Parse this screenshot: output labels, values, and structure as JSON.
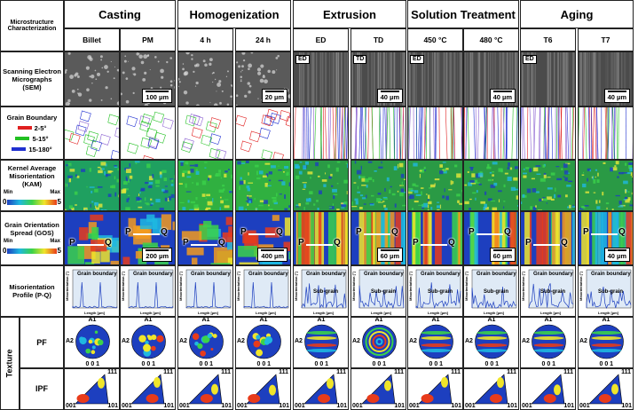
{
  "header": {
    "corner": "Microstructure Characterization",
    "stages": [
      "Casting",
      "Homogenization",
      "Extrusion",
      "Solution Treatment",
      "Aging"
    ],
    "conditions": [
      "Billet",
      "PM",
      "4 h",
      "24 h",
      "ED",
      "TD",
      "450 °C",
      "480 °C",
      "T6",
      "T7"
    ]
  },
  "rows": {
    "sem": "Scanning Electron Micrographs (SEM)",
    "gb": "Grain Boundary",
    "kam": "Kernel Average Misorientation (KAM)",
    "gos": "Grain Orientation Spread (GOS)",
    "mp": "Misorientation Profile (P-Q)",
    "texture": "Texture",
    "pf": "PF",
    "ipf": "IPF"
  },
  "gb_legend": [
    {
      "label": "2-5°",
      "color": "#e02020"
    },
    {
      "label": "5-15°",
      "color": "#22c022"
    },
    {
      "label": "15-180°",
      "color": "#2030d0"
    }
  ],
  "colorbar": {
    "min_label": "Min",
    "max_label": "Max",
    "min_value": "0",
    "max_value": "5"
  },
  "sem_scale": [
    "100 µm",
    "20 µm",
    "40 µm",
    "40 µm",
    "40 µm"
  ],
  "gos_scale": [
    "200 µm",
    "400 µm",
    "60 µm",
    "60 µm",
    "40 µm"
  ],
  "direction_tags": {
    "ed": "ED",
    "td": "TD"
  },
  "pq": {
    "p": "P",
    "q": "Q"
  },
  "profile": {
    "ylabel": "Misorientation [°]",
    "xlabel": "Length [µm]",
    "grain_boundary": "Grain boundary",
    "sub_grain": "Sub-grain"
  },
  "pf_labels": {
    "a1": "A1",
    "a2": "A2",
    "b": "0 0 1"
  },
  "ipf_labels": {
    "c001": "001",
    "c101": "101",
    "c111": "111"
  },
  "colors": {
    "border": "#222222",
    "kam_low": "#1d3fbf",
    "kam_high": "#e8e83a",
    "gos_low": "#1d3fbf",
    "gos_high": "#d21b1b"
  }
}
